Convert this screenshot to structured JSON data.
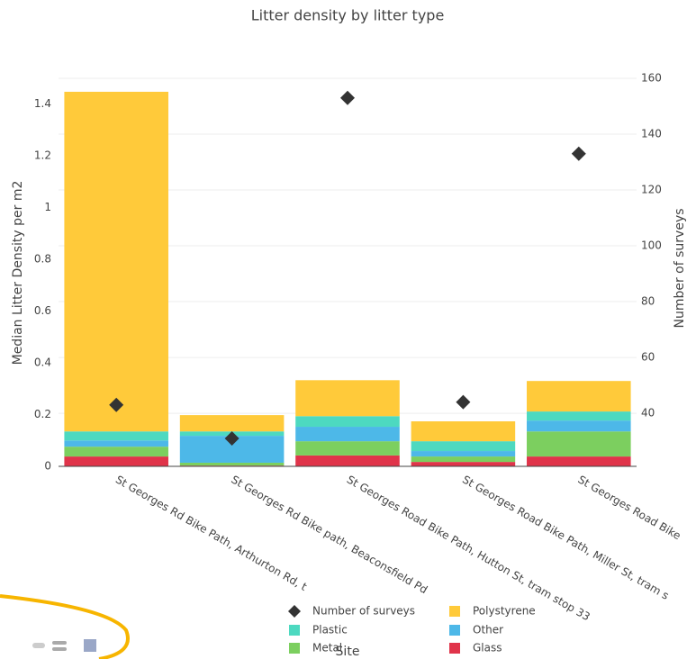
{
  "chart_data": {
    "type": "bar",
    "title": "Litter density by litter type",
    "x_label": "Site",
    "y_label": "Median Litter Density per m2",
    "y2_label": "Number of surveys",
    "categories": [
      "St Georges Rd Bike Path, Arthurton Rd, t",
      "St Georges Rd Bike path, Beaconsfield Pd",
      "St Georges Road Bike Path, Hutton St, tram stop 33",
      "St Georges Road Bike Path, Miller St, tram s",
      "St Georges Road Bike"
    ],
    "series": [
      {
        "name": "Glass",
        "color": "#e0344a",
        "values": [
          0.038,
          0.003,
          0.042,
          0.017,
          0.038
        ]
      },
      {
        "name": "Metal",
        "color": "#7ccf5f",
        "values": [
          0.038,
          0.011,
          0.055,
          0.021,
          0.097
        ]
      },
      {
        "name": "Other",
        "color": "#4db8e8",
        "values": [
          0.024,
          0.104,
          0.056,
          0.021,
          0.042
        ]
      },
      {
        "name": "Plastic",
        "color": "#4dd9c0",
        "values": [
          0.035,
          0.017,
          0.041,
          0.038,
          0.035
        ]
      },
      {
        "name": "Polystyrene",
        "color": "#ffca3a",
        "values": [
          1.313,
          0.063,
          0.139,
          0.077,
          0.118
        ]
      },
      {
        "name": "Number of surveys",
        "color": "#333333",
        "axis": "y2",
        "values": [
          43,
          31,
          153,
          44,
          133
        ]
      }
    ],
    "ylim": [
      0,
      1.5
    ],
    "yticks": [
      0,
      0.2,
      0.4,
      0.6,
      0.8,
      1,
      1.2,
      1.4
    ],
    "y2lim": [
      21,
      160
    ],
    "y2ticks": [
      40,
      60,
      80,
      100,
      120,
      140,
      160
    ],
    "grid": true
  }
}
